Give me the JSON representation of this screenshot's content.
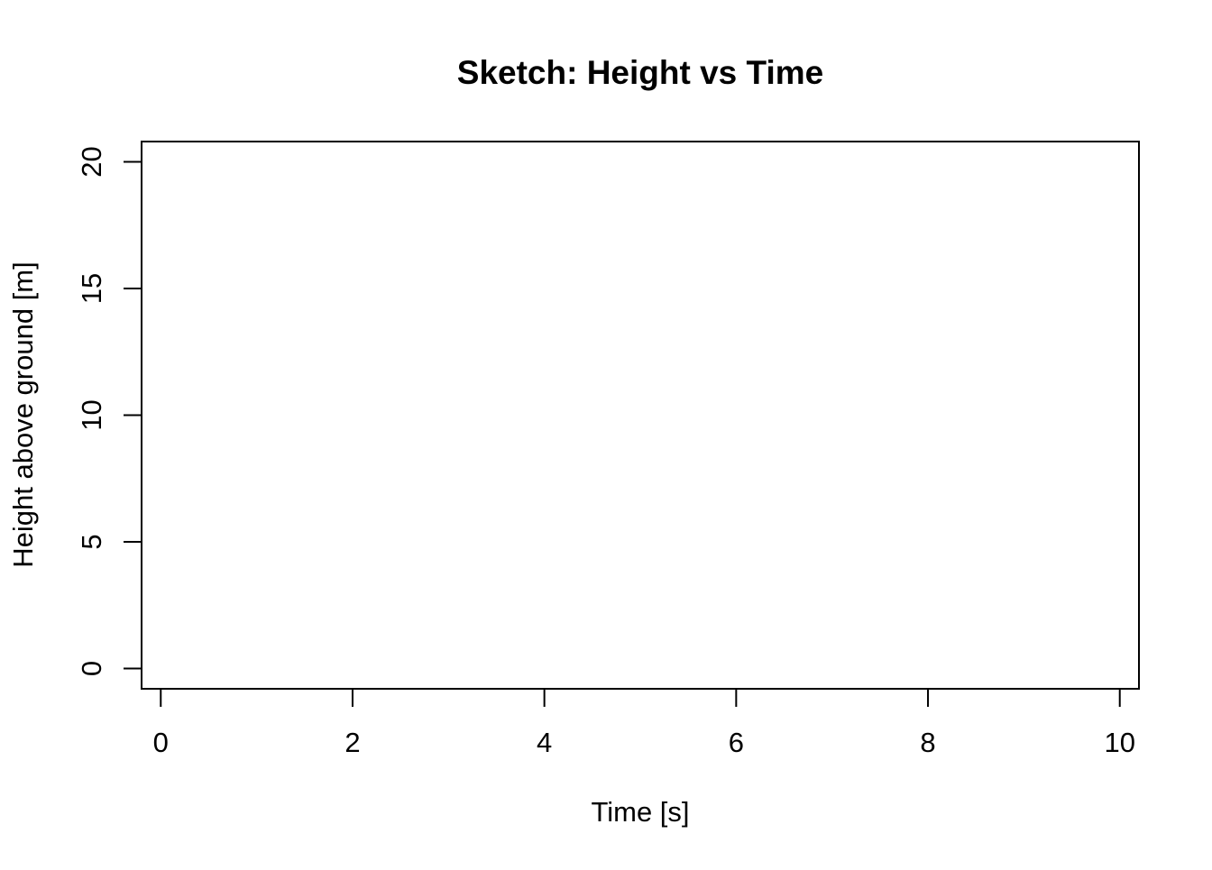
{
  "chart_data": {
    "type": "line",
    "title": "Sketch: Height vs Time",
    "xlabel": "Time [s]",
    "ylabel": "Height above ground [m]",
    "xlim": [
      -0.2,
      10.2
    ],
    "ylim": [
      -0.8,
      20.8
    ],
    "x_ticks": [
      0,
      2,
      4,
      6,
      8,
      10
    ],
    "x_tick_labels": [
      "0",
      "2",
      "4",
      "6",
      "8",
      "10"
    ],
    "y_ticks": [
      0,
      5,
      10,
      15,
      20
    ],
    "y_tick_labels": [
      "0",
      "5",
      "10",
      "15",
      "20"
    ],
    "series": [],
    "grid": false,
    "legend": "none"
  }
}
